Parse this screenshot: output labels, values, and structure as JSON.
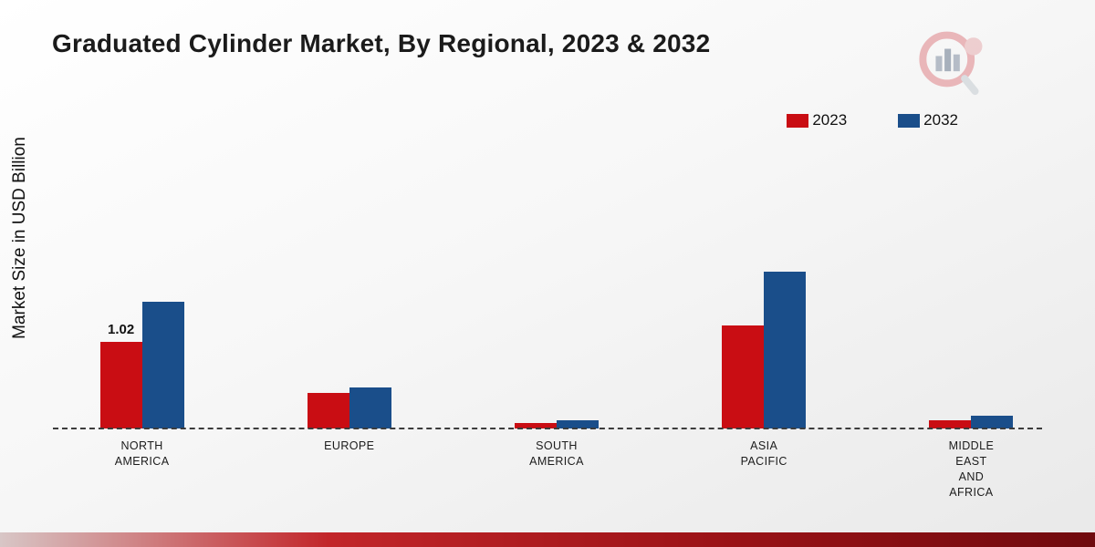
{
  "title": "Graduated Cylinder Market, By Regional, 2023 & 2032",
  "y_axis_label": "Market Size in USD Billion",
  "colors": {
    "series_2023": "#c90d13",
    "series_2032": "#1a4e8a",
    "accent_bar": "#9c1317"
  },
  "chart_data": {
    "type": "bar",
    "title": "Graduated Cylinder Market, By Regional, 2023 & 2032",
    "xlabel": "",
    "ylabel": "Market Size in USD Billion",
    "ylim": [
      0,
      2.0
    ],
    "grid": false,
    "legend_position": "top-right",
    "categories": [
      "NORTH AMERICA",
      "EUROPE",
      "SOUTH AMERICA",
      "ASIA PACIFIC",
      "MIDDLE EAST AND AFRICA"
    ],
    "category_lines": [
      [
        "NORTH",
        "AMERICA"
      ],
      [
        "EUROPE"
      ],
      [
        "SOUTH",
        "AMERICA"
      ],
      [
        "ASIA",
        "PACIFIC"
      ],
      [
        "MIDDLE",
        "EAST",
        "AND",
        "AFRICA"
      ]
    ],
    "series": [
      {
        "name": "2023",
        "color": "#c90d13",
        "values": [
          1.02,
          0.42,
          0.06,
          1.22,
          0.1
        ]
      },
      {
        "name": "2032",
        "color": "#1a4e8a",
        "values": [
          1.5,
          0.48,
          0.1,
          1.85,
          0.15
        ]
      }
    ],
    "annotations": [
      {
        "series": 0,
        "category": 0,
        "text": "1.02"
      }
    ]
  }
}
